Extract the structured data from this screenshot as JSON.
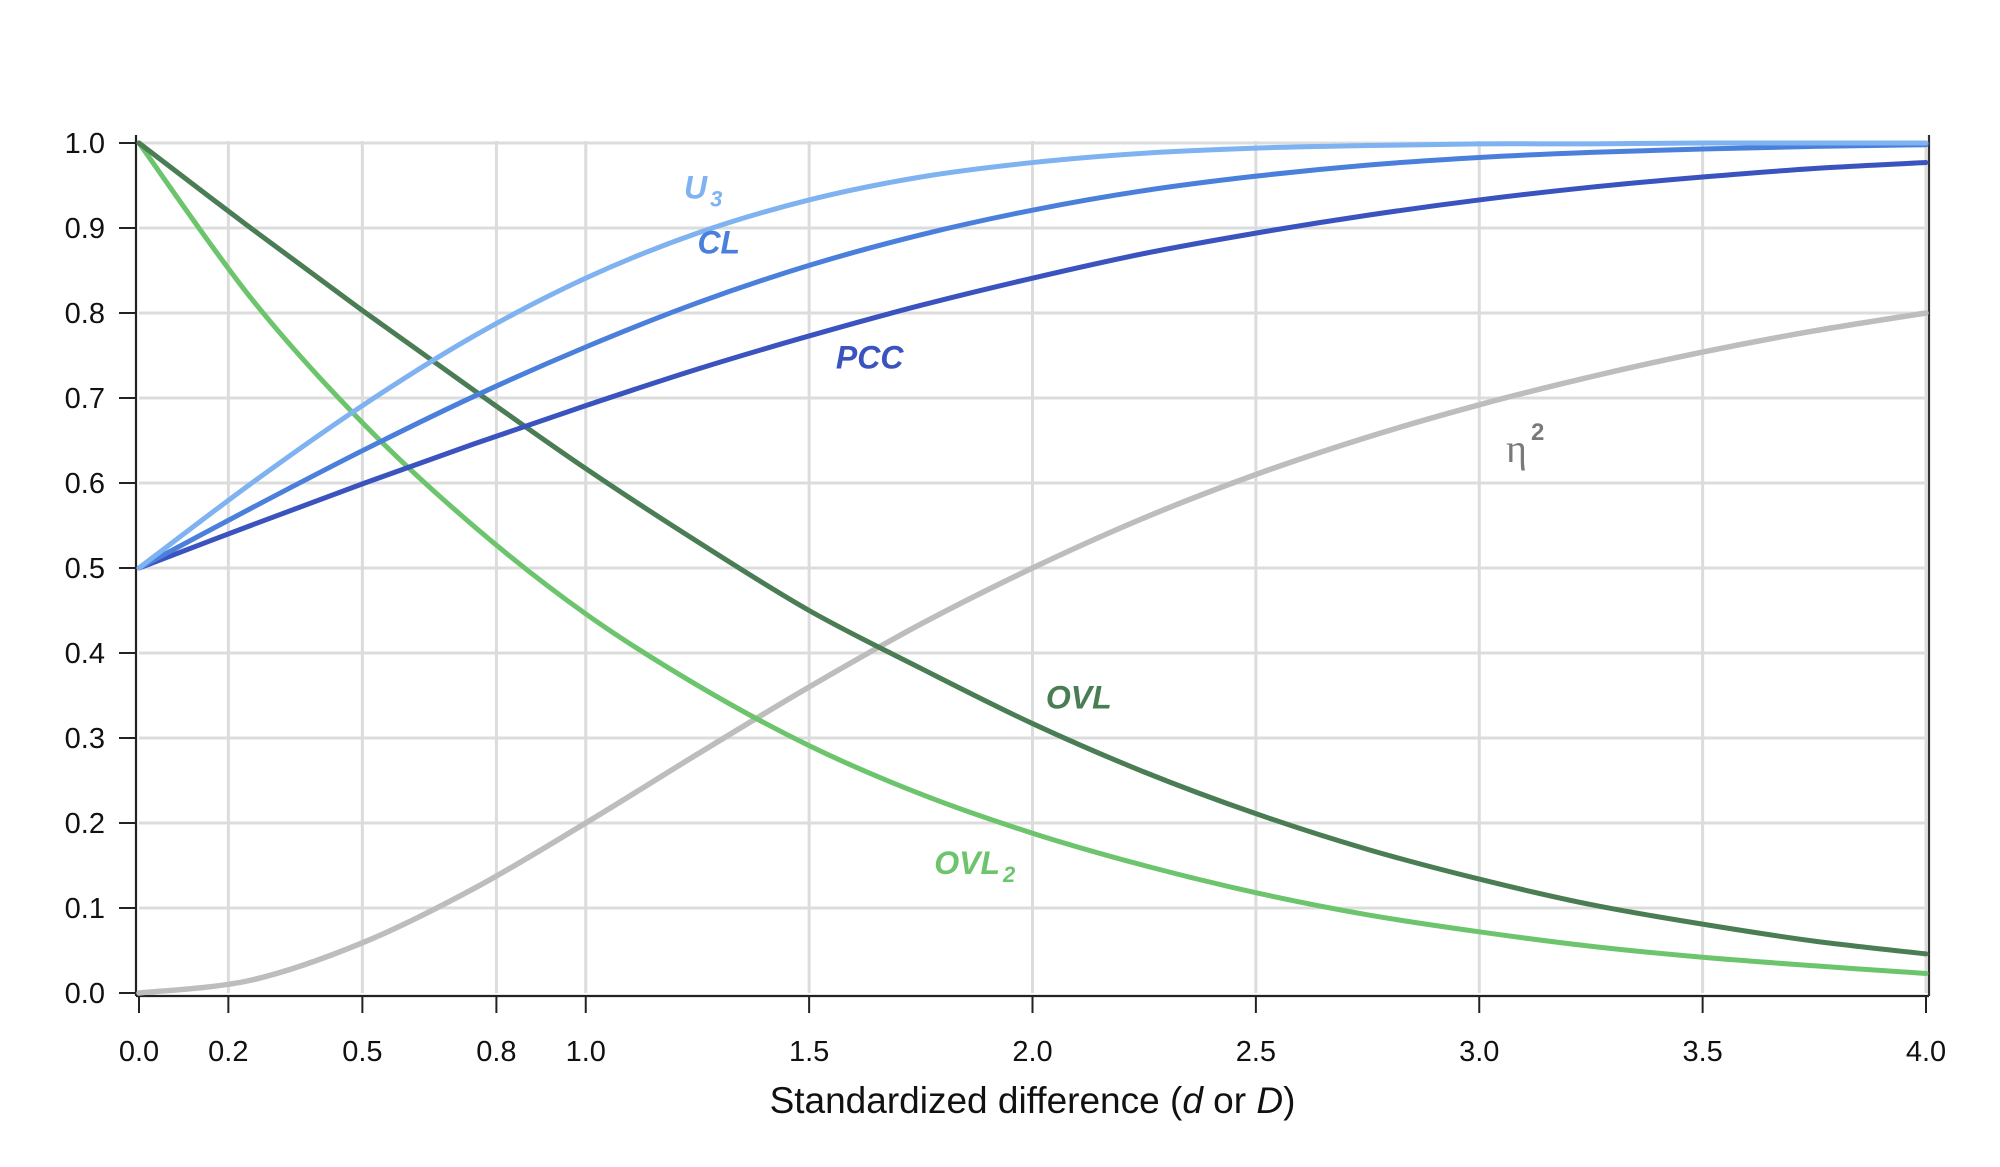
{
  "chart_data": {
    "type": "line",
    "title": "",
    "xlabel": "Standardized difference (d or D)",
    "xlabel_parts": [
      {
        "text": "Standardized difference (",
        "italic": false
      },
      {
        "text": "d",
        "italic": true
      },
      {
        "text": " or ",
        "italic": false
      },
      {
        "text": "D",
        "italic": true
      },
      {
        "text": ")",
        "italic": false
      }
    ],
    "ylabel": "",
    "xlim": [
      0,
      4
    ],
    "ylim": [
      0,
      1
    ],
    "grid": true,
    "legend": "none (inline curve labels)",
    "x_ticks": [
      {
        "value": 0.0,
        "label": "0.0"
      },
      {
        "value": 0.2,
        "label": "0.2"
      },
      {
        "value": 0.5,
        "label": "0.5"
      },
      {
        "value": 0.8,
        "label": "0.8"
      },
      {
        "value": 1.0,
        "label": "1.0"
      },
      {
        "value": 1.5,
        "label": "1.5"
      },
      {
        "value": 2.0,
        "label": "2.0"
      },
      {
        "value": 2.5,
        "label": "2.5"
      },
      {
        "value": 3.0,
        "label": "3.0"
      },
      {
        "value": 3.5,
        "label": "3.5"
      },
      {
        "value": 4.0,
        "label": "4.0"
      }
    ],
    "y_ticks": [
      {
        "value": 0.0,
        "label": "0.0"
      },
      {
        "value": 0.1,
        "label": "0.1"
      },
      {
        "value": 0.2,
        "label": "0.2"
      },
      {
        "value": 0.3,
        "label": "0.3"
      },
      {
        "value": 0.4,
        "label": "0.4"
      },
      {
        "value": 0.5,
        "label": "0.5"
      },
      {
        "value": 0.6,
        "label": "0.6"
      },
      {
        "value": 0.7,
        "label": "0.7"
      },
      {
        "value": 0.8,
        "label": "0.8"
      },
      {
        "value": 0.9,
        "label": "0.9"
      },
      {
        "value": 1.0,
        "label": "1.0"
      }
    ],
    "x": [
      0.0,
      0.25,
      0.5,
      0.75,
      1.0,
      1.25,
      1.5,
      1.75,
      2.0,
      2.25,
      2.5,
      2.75,
      3.0,
      3.25,
      3.5,
      3.75,
      4.0
    ],
    "series": [
      {
        "name": "U3",
        "label": "U",
        "label_sub": "3",
        "color": "#7fb2f0",
        "values": [
          0.5,
          0.599,
          0.691,
          0.773,
          0.841,
          0.894,
          0.933,
          0.96,
          0.977,
          0.988,
          0.994,
          0.997,
          0.999,
          0.999,
          1.0,
          1.0,
          1.0
        ],
        "label_at": {
          "x": 1.22,
          "y": 0.935
        }
      },
      {
        "name": "CL",
        "label": "CL",
        "label_sub": "",
        "color": "#4a80dc",
        "values": [
          0.5,
          0.57,
          0.638,
          0.702,
          0.76,
          0.812,
          0.856,
          0.892,
          0.921,
          0.944,
          0.961,
          0.974,
          0.983,
          0.989,
          0.993,
          0.996,
          0.998
        ],
        "label_at": {
          "x": 1.25,
          "y": 0.87
        }
      },
      {
        "name": "PCC",
        "label": "PCC",
        "label_sub": "",
        "color": "#3a53bf",
        "values": [
          0.5,
          0.55,
          0.599,
          0.646,
          0.691,
          0.734,
          0.773,
          0.809,
          0.841,
          0.87,
          0.894,
          0.915,
          0.933,
          0.948,
          0.96,
          0.97,
          0.977
        ],
        "label_at": {
          "x": 1.56,
          "y": 0.735
        }
      },
      {
        "name": "OVL",
        "label": "OVL",
        "label_sub": "",
        "color": "#4a7d54",
        "values": [
          1.0,
          0.9,
          0.803,
          0.709,
          0.617,
          0.531,
          0.45,
          0.382,
          0.317,
          0.26,
          0.211,
          0.169,
          0.134,
          0.104,
          0.081,
          0.061,
          0.046
        ],
        "label_at": {
          "x": 2.03,
          "y": 0.335
        }
      },
      {
        "name": "OVL2",
        "label": "OVL",
        "label_sub": "2",
        "color": "#6cc46c",
        "values": [
          1.0,
          0.818,
          0.671,
          0.549,
          0.446,
          0.362,
          0.291,
          0.234,
          0.188,
          0.15,
          0.118,
          0.092,
          0.072,
          0.055,
          0.042,
          0.032,
          0.023
        ],
        "label_at": {
          "x": 1.78,
          "y": 0.14
        }
      },
      {
        "name": "eta-squared",
        "label": "η",
        "label_sup": "2",
        "color": "#bdbdbd",
        "label_color": "#7a7a7a",
        "values": [
          0.0,
          0.015,
          0.059,
          0.123,
          0.2,
          0.281,
          0.36,
          0.434,
          0.5,
          0.559,
          0.61,
          0.654,
          0.692,
          0.725,
          0.754,
          0.779,
          0.8
        ],
        "label_at": {
          "x": 3.06,
          "y": 0.625
        }
      }
    ]
  }
}
